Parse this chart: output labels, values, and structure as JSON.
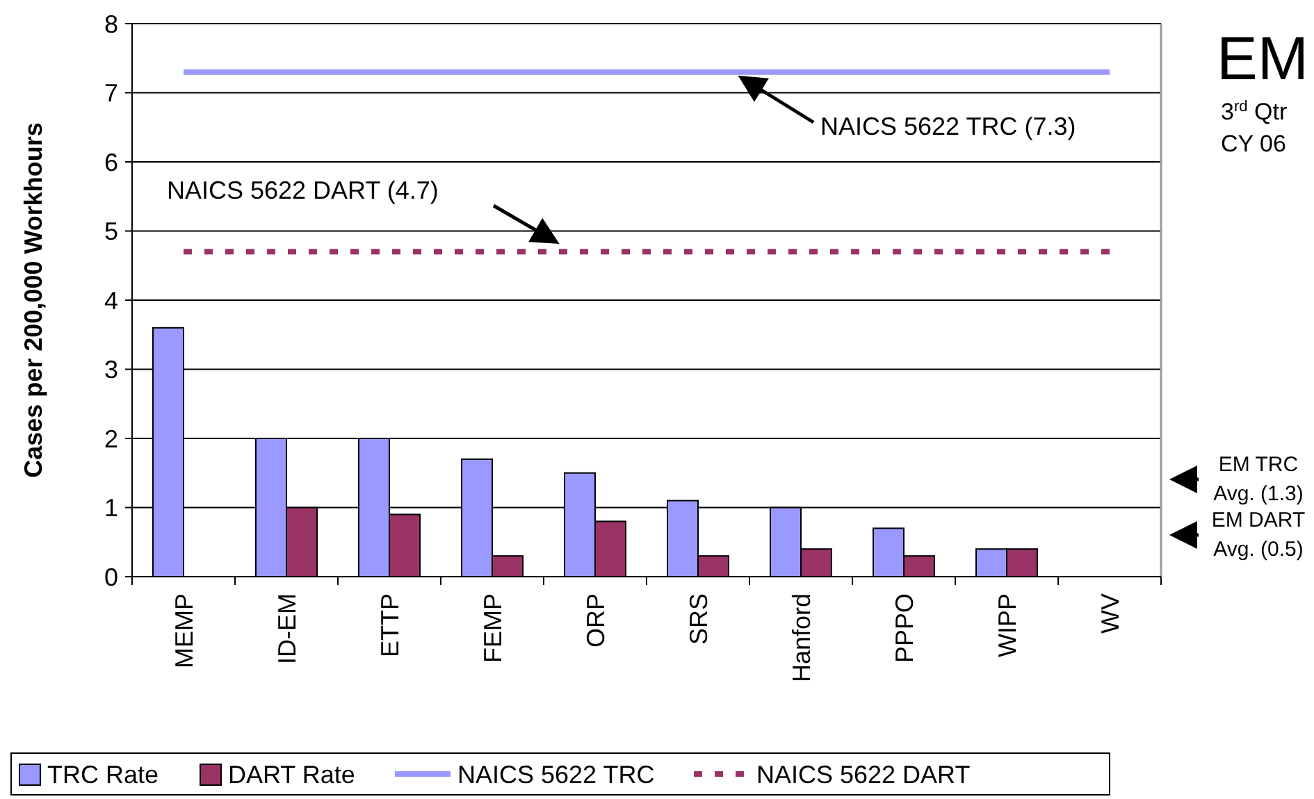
{
  "chart_data": {
    "type": "bar",
    "title": "EM",
    "subtitle": "3$^{rd}$ Qtr CY 06",
    "ylabel": "Cases per 200,000 Workhours",
    "categories": [
      "MEMP",
      "ID-EM",
      "ETTP",
      "FEMP",
      "ORP",
      "SRS",
      "Hanford",
      "PPPO",
      "WIPP",
      "WV"
    ],
    "series": [
      {
        "name": "TRC Rate",
        "color": "#9999ff",
        "values": [
          3.6,
          2.0,
          2.0,
          1.7,
          1.5,
          1.1,
          1.0,
          0.7,
          0.4,
          0
        ]
      },
      {
        "name": "DART Rate",
        "color": "#993366",
        "values": [
          0,
          1.0,
          0.9,
          0.3,
          0.8,
          0.3,
          0.4,
          0.3,
          0.4,
          0
        ]
      },
      {
        "name": "NAICS 5622 TRC",
        "type": "line",
        "color": "#9999ff",
        "line_style": "solid",
        "values": [
          7.3,
          7.3,
          7.3,
          7.3,
          7.3,
          7.3,
          7.3,
          7.3,
          7.3,
          7.3
        ]
      },
      {
        "name": "NAICS 5622 DART",
        "type": "line",
        "color": "#993366",
        "line_style": "dotted",
        "values": [
          4.7,
          4.7,
          4.7,
          4.7,
          4.7,
          4.7,
          4.7,
          4.7,
          4.7,
          4.7
        ]
      }
    ],
    "annotations": [
      "NAICS 5622 TRC (7.3)",
      "NAICS 5622 DART (4.7)",
      "EM TRC Avg. (1.3)",
      "EM DART Avg. (0.5)"
    ],
    "ylim": [
      0,
      8
    ],
    "yticks": [
      0,
      1,
      2,
      3,
      4,
      5,
      6,
      7,
      8
    ],
    "grid": "y",
    "legend": "bottom",
    "marker": "none"
  }
}
